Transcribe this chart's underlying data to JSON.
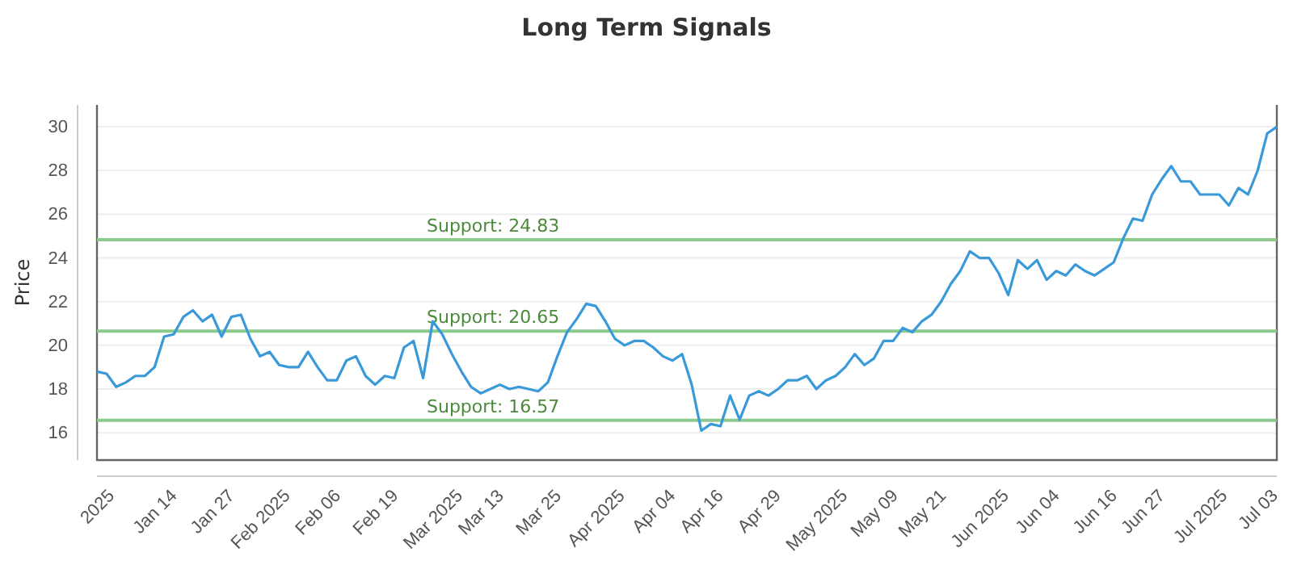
{
  "chart_data": {
    "type": "line",
    "title": "Long Term Signals",
    "ylabel": "Price",
    "categories": [
      "2025",
      null,
      null,
      null,
      null,
      null,
      "Jan 14",
      null,
      null,
      null,
      null,
      null,
      "Jan 27",
      null,
      null,
      null,
      null,
      "Feb 2025",
      null,
      null,
      null,
      null,
      null,
      "Feb 06",
      null,
      null,
      null,
      null,
      null,
      "Feb 19",
      null,
      null,
      null,
      null,
      null,
      "Mar 2025",
      null,
      null,
      null,
      null,
      "Mar 13",
      null,
      null,
      null,
      null,
      null,
      "Mar 25",
      null,
      null,
      null,
      null,
      null,
      "Apr 2025",
      null,
      null,
      null,
      null,
      null,
      "Apr 04",
      null,
      null,
      null,
      null,
      "Apr 16",
      null,
      null,
      null,
      null,
      null,
      "Apr 29",
      null,
      null,
      null,
      null,
      null,
      "May 2025",
      null,
      null,
      null,
      null,
      null,
      "May 09",
      null,
      null,
      null,
      null,
      "May 21",
      null,
      null,
      null,
      null,
      null,
      "Jun 2025",
      null,
      null,
      null,
      null,
      null,
      "Jun 04",
      null,
      null,
      null,
      null,
      null,
      "Jun 16",
      null,
      null,
      null,
      null,
      "Jun 27",
      null,
      null,
      null,
      null,
      null,
      "Jul 2025",
      null,
      null,
      null,
      null,
      null,
      "Jul 03",
      null,
      null
    ],
    "series": [
      {
        "color": "#3a9ad9",
        "values": [
          18.8,
          18.7,
          18.1,
          18.3,
          18.6,
          18.6,
          19.0,
          20.4,
          20.5,
          21.3,
          21.6,
          21.1,
          21.4,
          20.4,
          21.3,
          21.4,
          20.3,
          19.5,
          19.7,
          19.1,
          19.0,
          19.0,
          19.7,
          19.0,
          18.4,
          18.4,
          19.3,
          19.5,
          18.6,
          18.2,
          18.6,
          18.5,
          19.9,
          20.2,
          18.5,
          21.1,
          20.5,
          19.6,
          18.8,
          18.1,
          17.8,
          18.0,
          18.2,
          18.0,
          18.1,
          18.0,
          17.9,
          18.3,
          19.5,
          20.6,
          21.2,
          21.9,
          21.8,
          21.1,
          20.3,
          20.0,
          20.2,
          20.2,
          19.9,
          19.5,
          19.3,
          19.6,
          18.2,
          16.1,
          16.4,
          16.3,
          17.7,
          16.6,
          17.7,
          17.9,
          17.7,
          18.0,
          18.4,
          18.4,
          18.6,
          18.0,
          18.4,
          18.6,
          19.0,
          19.6,
          19.1,
          19.4,
          20.2,
          20.2,
          20.8,
          20.6,
          21.1,
          21.4,
          22.0,
          22.8,
          23.4,
          24.3,
          24.0,
          24.0,
          23.3,
          22.3,
          23.9,
          23.5,
          23.9,
          23.0,
          23.4,
          23.2,
          23.7,
          23.4,
          23.2,
          23.5,
          23.8,
          24.9,
          25.8,
          25.7,
          26.9,
          27.6,
          28.2,
          27.5,
          27.5,
          26.9,
          26.9,
          26.9,
          26.4,
          27.2,
          26.9,
          28.0,
          29.7,
          30.0
        ]
      }
    ],
    "ylim": [
      14.75,
      31
    ],
    "yticks": [
      16,
      18,
      20,
      22,
      24,
      26,
      28,
      30
    ],
    "grid": "y",
    "ref_lines": [
      {
        "axis": "y",
        "value": 24.83,
        "label": "Support: 24.83",
        "color": "#8cc98c"
      },
      {
        "axis": "y",
        "value": 20.65,
        "label": "Support: 20.65",
        "color": "#8cc98c"
      },
      {
        "axis": "y",
        "value": 16.57,
        "label": "Support: 16.57",
        "color": "#8cc98c"
      }
    ]
  }
}
